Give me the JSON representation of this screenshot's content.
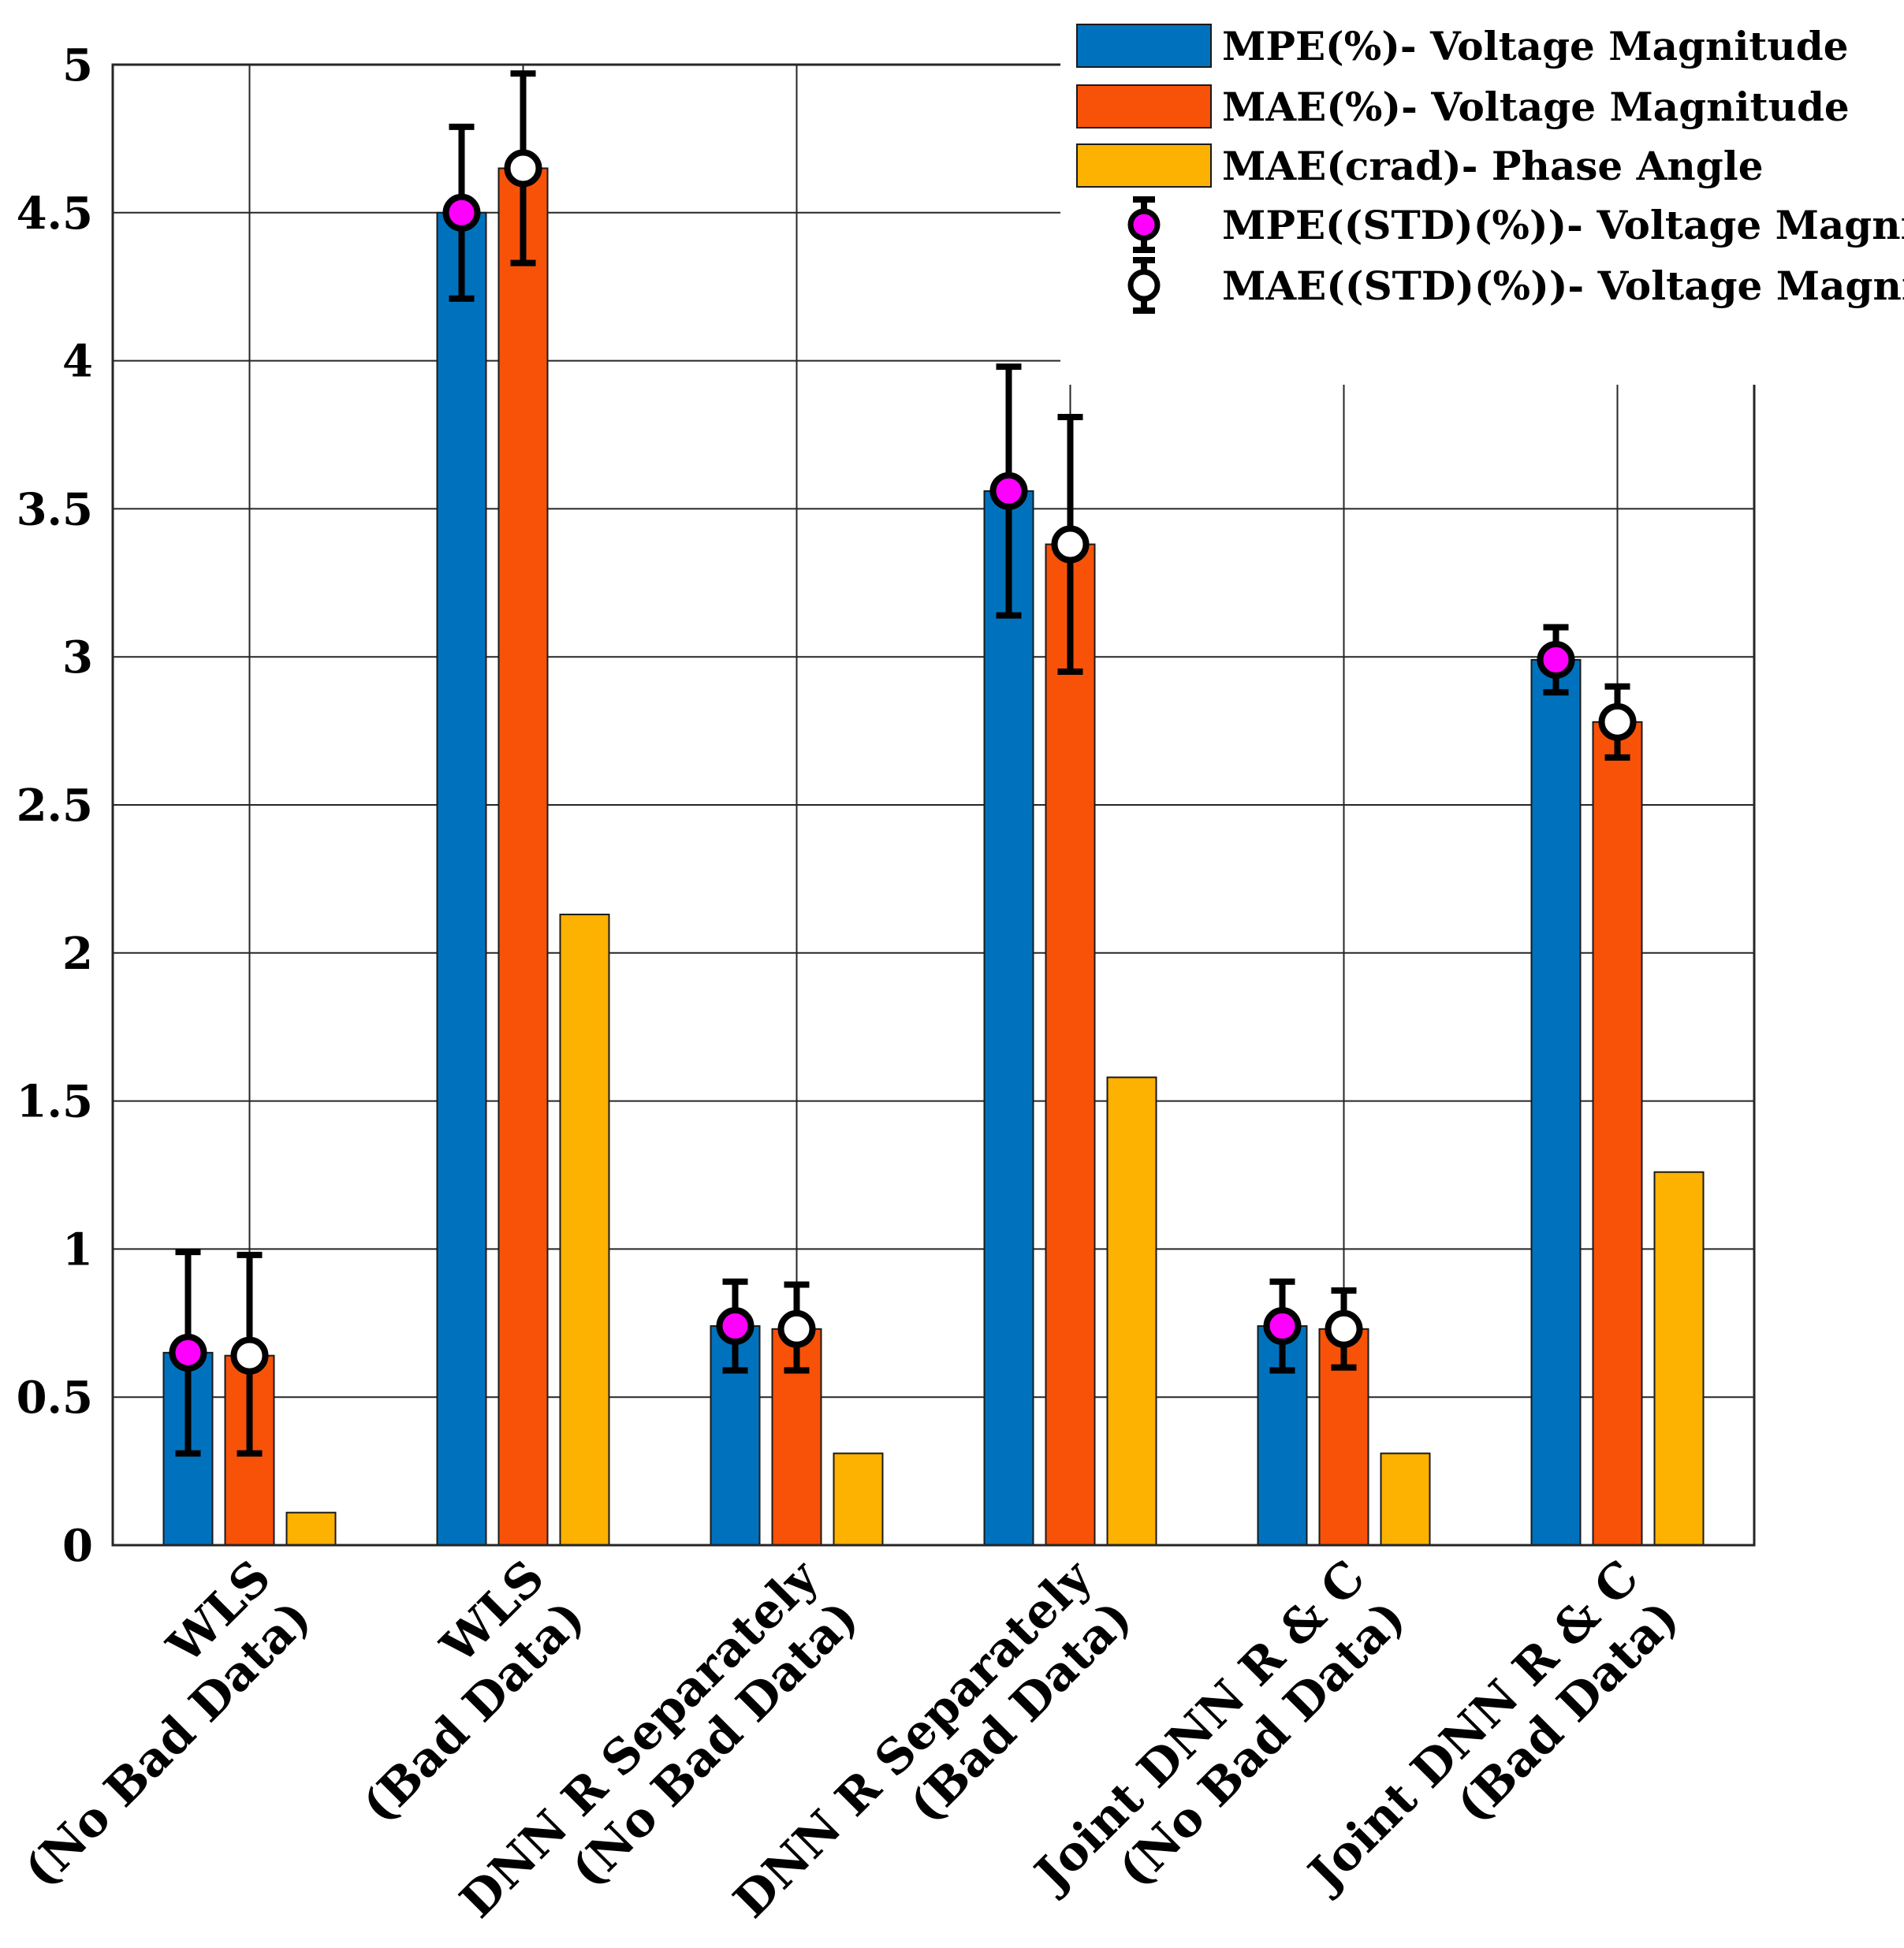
{
  "chart_data": {
    "type": "bar",
    "title": "",
    "xlabel": "",
    "ylabel": "",
    "ylim": [
      0,
      5
    ],
    "yticks": [
      "0",
      "0.5",
      "1",
      "1.5",
      "2",
      "2.5",
      "3",
      "3.5",
      "4",
      "4.5",
      "5"
    ],
    "ytick_values": [
      0,
      0.5,
      1,
      1.5,
      2,
      2.5,
      3,
      3.5,
      4,
      4.5,
      5
    ],
    "grid": true,
    "legend_position": "top-right",
    "categories": [
      [
        "WLS",
        "(No Bad Data)"
      ],
      [
        "WLS",
        "(Bad Data)"
      ],
      [
        "DNN R Separately",
        "(No Bad Data)"
      ],
      [
        "DNN R Separately",
        "(Bad Data)"
      ],
      [
        "Joint DNN R & C",
        "(No Bad Data)"
      ],
      [
        "Joint DNN R & C",
        "(Bad Data)"
      ]
    ],
    "series": [
      {
        "name": "MPE(%)- Voltage Magnitude",
        "color": "#0072BD",
        "values": [
          0.65,
          4.5,
          0.74,
          3.56,
          0.74,
          2.99
        ]
      },
      {
        "name": "MAE(%)- Voltage Magnitude",
        "color": "#F75208",
        "values": [
          0.64,
          4.65,
          0.73,
          3.38,
          0.73,
          2.78
        ]
      },
      {
        "name": "MAE(crad)- Phase Angle",
        "color": "#FDB100",
        "values": [
          0.11,
          2.13,
          0.31,
          1.58,
          0.31,
          1.26
        ]
      }
    ],
    "error_bars": [
      {
        "name": "MPE((STD)(%))- Voltage Magnitude",
        "series_index": 0,
        "marker": "magenta-filled-circle",
        "marker_color": "#FF00FF",
        "center": [
          0.65,
          4.5,
          0.74,
          3.56,
          0.74,
          2.99
        ],
        "low": [
          0.31,
          4.21,
          0.59,
          3.14,
          0.59,
          2.88
        ],
        "high": [
          0.99,
          4.79,
          0.89,
          3.98,
          0.89,
          3.1
        ]
      },
      {
        "name": "MAE((STD)(%))- Voltage Magnitude",
        "series_index": 1,
        "marker": "open-circle",
        "marker_color": "#FFFFFF",
        "center": [
          0.64,
          4.65,
          0.73,
          3.38,
          0.73,
          2.78
        ],
        "low": [
          0.31,
          4.33,
          0.59,
          2.95,
          0.6,
          2.66
        ],
        "high": [
          0.98,
          4.97,
          0.88,
          3.81,
          0.86,
          2.9
        ]
      }
    ]
  }
}
